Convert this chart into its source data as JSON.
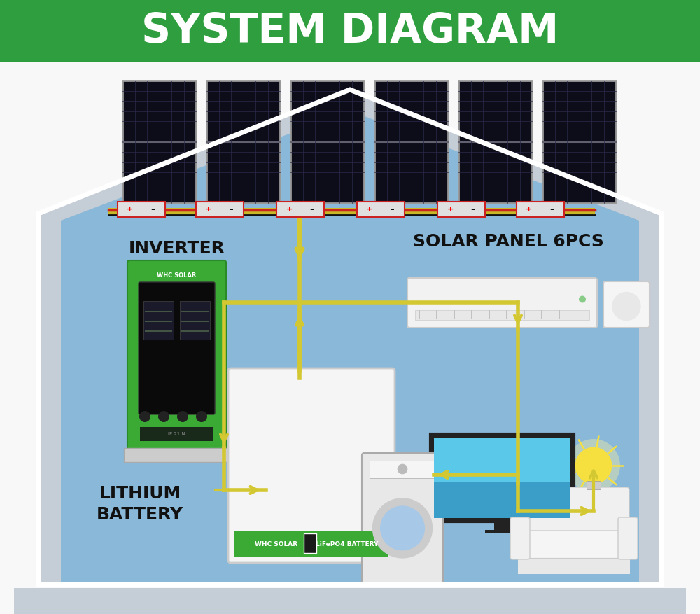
{
  "title": "SYSTEM DIAGRAM",
  "title_bg_color": "#2e9e3e",
  "title_text_color": "#ffffff",
  "bg_color": "#f8f8f8",
  "house_wall_color": "#c5cdd6",
  "house_interior_color": "#8ab8d8",
  "house_interior_light": "#a8cce0",
  "roof_color": "#c5cdd6",
  "floor_color": "#c5cdd6",
  "labels": {
    "inverter": "INVERTER",
    "solar_panel": "SOLAR PANEL 6PCS",
    "lithium_battery": "LITHIUM\nBATTERY"
  },
  "label_fontsize": 15,
  "label_color": "#111111",
  "wire_color": "#d4c832",
  "wire_color_red": "#cc2222",
  "wire_color_black": "#111111",
  "solar_panel_bg": "#0d0d1a",
  "solar_panel_frame": "#999999",
  "solar_panel_line": "#2a2a4a",
  "inverter_green": "#3aaa35",
  "inverter_dark_green": "#2a8a28",
  "inverter_black": "#0a0a0a",
  "battery_white": "#f5f5f5",
  "battery_green": "#3aaa35",
  "ac_white": "#f0f0f0",
  "tv_frame": "#222222",
  "tv_screen": "#4ab8e8",
  "sofa_color": "#f0f0f0",
  "wm_color": "#e8e8e8"
}
